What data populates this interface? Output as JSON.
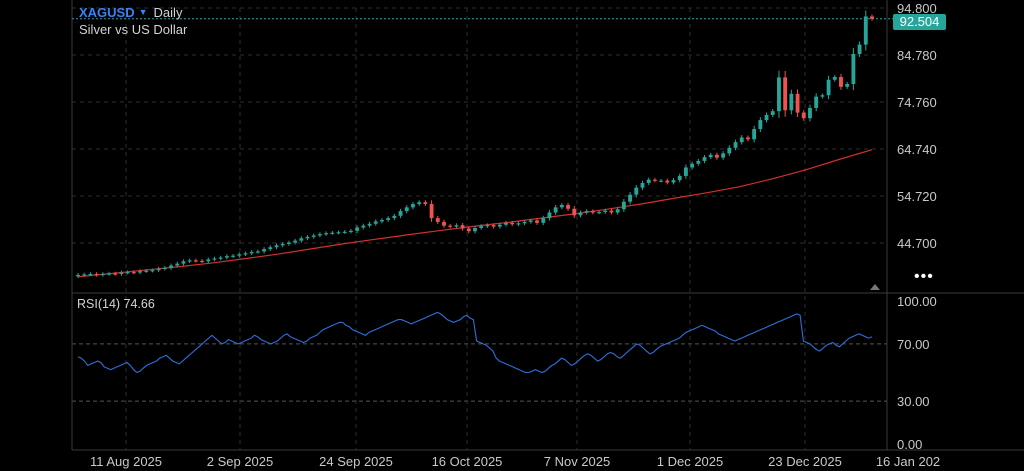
{
  "header": {
    "symbol": "XAGUSD",
    "timeframe": "Daily",
    "description": "Silver vs US Dollar"
  },
  "last_price": "92.504",
  "rsi_label": "RSI(14) 74.66",
  "more_glyph": "•••",
  "colors": {
    "up": "#26a69a",
    "down": "#ef5350",
    "ma": "#d32f2f",
    "rsi": "#2f6fdb",
    "grid": "#2e2e2e",
    "axis_text": "#c9c9c9",
    "price_line": "#26a69a"
  },
  "chart_data": [
    {
      "type": "candlestick",
      "title": "XAGUSD",
      "subtitle": "Silver vs US Dollar",
      "ylim": [
        34.68,
        94.8
      ],
      "y_ticks": [
        "94.800",
        "84.780",
        "74.760",
        "64.740",
        "54.720",
        "44.700"
      ],
      "x_tick_labels": [
        "11 Aug 2025",
        "2 Sep 2025",
        "24 Sep 2025",
        "16 Oct 2025",
        "7 Nov 2025",
        "1 Dec 2025",
        "23 Dec 2025",
        "16 Jan 202"
      ],
      "closes": [
        37.9,
        38.0,
        38.1,
        37.9,
        38.1,
        38.2,
        38.1,
        38.4,
        38.5,
        38.4,
        38.7,
        38.8,
        38.9,
        39.2,
        39.4,
        39.9,
        40.3,
        40.8,
        41.0,
        40.9,
        40.8,
        41.2,
        41.4,
        41.6,
        41.9,
        42.0,
        42.3,
        42.5,
        42.8,
        42.9,
        43.4,
        43.8,
        44.2,
        44.5,
        44.8,
        45.2,
        45.7,
        46.0,
        46.3,
        46.6,
        46.8,
        46.9,
        47.0,
        47.1,
        47.3,
        48.0,
        48.4,
        48.8,
        49.3,
        49.6,
        50.0,
        50.5,
        51.5,
        52.3,
        53.0,
        53.4,
        53.0,
        50.0,
        49.2,
        48.4,
        48.2,
        48.5,
        47.8,
        47.2,
        47.9,
        48.3,
        48.5,
        48.2,
        48.6,
        49.0,
        48.7,
        48.9,
        49.2,
        49.5,
        49.0,
        50.0,
        51.2,
        52.3,
        52.8,
        52.0,
        50.6,
        51.2,
        51.5,
        51.2,
        51.3,
        51.6,
        51.2,
        51.9,
        53.5,
        55.0,
        56.5,
        57.5,
        58.2,
        58.0,
        58.0,
        57.6,
        58.1,
        59.0,
        60.8,
        61.6,
        62.2,
        63.0,
        63.5,
        62.9,
        63.8,
        65.0,
        66.2,
        67.2,
        66.8,
        69.0,
        70.9,
        72.0,
        72.8,
        80.0,
        73.0,
        76.5,
        72.5,
        71.3,
        73.5,
        75.9,
        76.2,
        79.5,
        80.1,
        78.0,
        78.6,
        85.0,
        87.0,
        93.0,
        92.5
      ],
      "ma": [
        37.5,
        38.2,
        38.9,
        39.6,
        40.4,
        41.3,
        42.3,
        43.4,
        44.5,
        45.5,
        46.5,
        47.4,
        48.3,
        49.1,
        50.0,
        50.9,
        51.9,
        53.0,
        54.2,
        55.4,
        56.7,
        58.4,
        60.3,
        62.5,
        64.6
      ],
      "ma_label": "",
      "last_price": 92.504
    },
    {
      "type": "line",
      "title": "RSI(14)",
      "last_value": 74.66,
      "ylim": [
        0,
        100
      ],
      "y_ticks": [
        "100.00",
        "70.00",
        "30.00",
        "0.00"
      ],
      "values": [
        61,
        60,
        58,
        55,
        56,
        57,
        58,
        57,
        54,
        53,
        52,
        53,
        54,
        55,
        56,
        57,
        55,
        52,
        50,
        51,
        53,
        55,
        56,
        57,
        58,
        60,
        61,
        62,
        60,
        58,
        57,
        56,
        58,
        60,
        62,
        64,
        66,
        68,
        70,
        72,
        74,
        76,
        74,
        72,
        70,
        71,
        73,
        72,
        71,
        70,
        71,
        72,
        73,
        74,
        76,
        75,
        73,
        72,
        71,
        70,
        71,
        72,
        74,
        76,
        77,
        75,
        74,
        73,
        72,
        71,
        72,
        74,
        75,
        76,
        78,
        80,
        81,
        82,
        83,
        84,
        85,
        85,
        83,
        82,
        80,
        79,
        78,
        77,
        76,
        78,
        79,
        80,
        81,
        82,
        83,
        84,
        85,
        86,
        87,
        87,
        86,
        85,
        84,
        85,
        86,
        87,
        88,
        89,
        90,
        91,
        92,
        91,
        89,
        87,
        86,
        85,
        86,
        87,
        89,
        90,
        88,
        87,
        72,
        71,
        70,
        69,
        67,
        65,
        60,
        58,
        57,
        56,
        55,
        54,
        53,
        52,
        51,
        50,
        50,
        51,
        52,
        51,
        50,
        51,
        53,
        55,
        56,
        58,
        60,
        59,
        57,
        55,
        56,
        58,
        60,
        62,
        63,
        62,
        60,
        58,
        59,
        61,
        63,
        64,
        63,
        61,
        60,
        62,
        64,
        66,
        68,
        70,
        69,
        67,
        65,
        63,
        64,
        66,
        68,
        69,
        70,
        71,
        72,
        73,
        74,
        76,
        78,
        79,
        80,
        81,
        82,
        83,
        82,
        81,
        80,
        79,
        77,
        76,
        75,
        74,
        73,
        72,
        73,
        74,
        75,
        76,
        77,
        78,
        79,
        80,
        81,
        82,
        83,
        84,
        85,
        86,
        87,
        88,
        89,
        90,
        91,
        90,
        72,
        71,
        70,
        68,
        66,
        65,
        67,
        69,
        70,
        71,
        69,
        68,
        70,
        72,
        74,
        75,
        76,
        77,
        76,
        75,
        74,
        75
      ]
    }
  ]
}
